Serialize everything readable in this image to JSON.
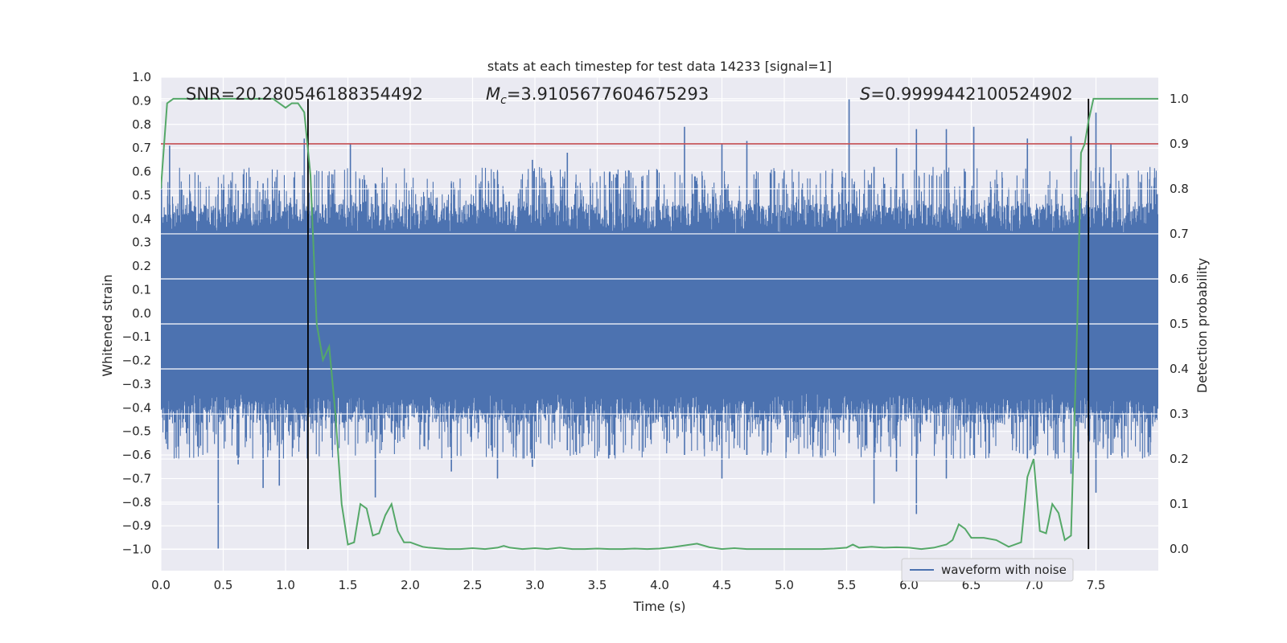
{
  "chart_data": {
    "type": "line",
    "title": "stats at each timestep for test data 14233 [signal=1]",
    "xlabel": "Time (s)",
    "ylabel_left": "Whitened strain",
    "ylabel_right": "Detection probability",
    "xlim": [
      0.0,
      8.0
    ],
    "ylim_left": [
      -1.09,
      1.0
    ],
    "ylim_right": [
      -0.048,
      1.048
    ],
    "x_ticks": [
      "0.0",
      "0.5",
      "1.0",
      "1.5",
      "2.0",
      "2.5",
      "3.0",
      "3.5",
      "4.0",
      "4.5",
      "5.0",
      "5.5",
      "6.0",
      "6.5",
      "7.0",
      "7.5"
    ],
    "x_tick_values": [
      0.0,
      0.5,
      1.0,
      1.5,
      2.0,
      2.5,
      3.0,
      3.5,
      4.0,
      4.5,
      5.0,
      5.5,
      6.0,
      6.5,
      7.0,
      7.5
    ],
    "y_left_ticks": [
      "1.0",
      "0.9",
      "0.8",
      "0.7",
      "0.6",
      "0.5",
      "0.4",
      "0.3",
      "0.2",
      "0.1",
      "0.0",
      "−0.1",
      "−0.2",
      "−0.3",
      "−0.4",
      "−0.5",
      "−0.6",
      "−0.7",
      "−0.8",
      "−0.9",
      "−1.0"
    ],
    "y_left_tick_values": [
      1.0,
      0.9,
      0.8,
      0.7,
      0.6,
      0.5,
      0.4,
      0.3,
      0.2,
      0.1,
      0.0,
      -0.1,
      -0.2,
      -0.3,
      -0.4,
      -0.5,
      -0.6,
      -0.7,
      -0.8,
      -0.9,
      -1.0
    ],
    "y_right_ticks": [
      "1.0",
      "0.9",
      "0.8",
      "0.7",
      "0.6",
      "0.5",
      "0.4",
      "0.3",
      "0.2",
      "0.1",
      "0.0"
    ],
    "y_right_tick_values": [
      1.0,
      0.9,
      0.8,
      0.7,
      0.6,
      0.5,
      0.4,
      0.3,
      0.2,
      0.1,
      0.0
    ],
    "annotations": {
      "snr": "SNR=20.280546188354492",
      "mc_symbol": "M",
      "mc_sub": "c",
      "mc_value": "=3.9105677604675293",
      "s_symbol": "S",
      "s_value": "=0.9999442100524902"
    },
    "threshold": {
      "value": 0.9,
      "axis": "right",
      "color": "#c44e52"
    },
    "vertical_lines": [
      1.18,
      7.44
    ],
    "legend": {
      "label": "waveform with noise",
      "location": "lower-right"
    },
    "waveform": {
      "name": "waveform with noise",
      "color": "#4c72b0",
      "core_band": [
        -0.34,
        0.34
      ],
      "spikes": [
        {
          "t": 0.07,
          "max": 0.71,
          "min": -0.45
        },
        {
          "t": 0.46,
          "max": 0.42,
          "min": -1.0
        },
        {
          "t": 0.62,
          "max": 0.52,
          "min": -0.64
        },
        {
          "t": 0.82,
          "max": 0.55,
          "min": -0.74
        },
        {
          "t": 0.95,
          "max": 0.52,
          "min": -0.73
        },
        {
          "t": 1.15,
          "max": 0.74,
          "min": -0.5
        },
        {
          "t": 1.52,
          "max": 0.72,
          "min": -0.45
        },
        {
          "t": 1.72,
          "max": 0.55,
          "min": -0.78
        },
        {
          "t": 2.33,
          "max": 0.55,
          "min": -0.67
        },
        {
          "t": 2.7,
          "max": 0.6,
          "min": -0.7
        },
        {
          "t": 2.98,
          "max": 0.65,
          "min": -0.65
        },
        {
          "t": 3.26,
          "max": 0.68,
          "min": -0.58
        },
        {
          "t": 3.6,
          "max": 0.6,
          "min": -0.6
        },
        {
          "t": 4.2,
          "max": 0.79,
          "min": -0.6
        },
        {
          "t": 4.5,
          "max": 0.72,
          "min": -0.7
        },
        {
          "t": 4.7,
          "max": 0.73,
          "min": -0.6
        },
        {
          "t": 5.52,
          "max": 0.91,
          "min": -0.55
        },
        {
          "t": 5.72,
          "max": 0.62,
          "min": -0.81
        },
        {
          "t": 5.9,
          "max": 0.7,
          "min": -0.67
        },
        {
          "t": 6.06,
          "max": 0.78,
          "min": -0.85
        },
        {
          "t": 6.3,
          "max": 0.78,
          "min": -0.7
        },
        {
          "t": 6.52,
          "max": 0.79,
          "min": -0.6
        },
        {
          "t": 6.95,
          "max": 0.74,
          "min": -0.62
        },
        {
          "t": 7.3,
          "max": 0.75,
          "min": -0.68
        },
        {
          "t": 7.5,
          "max": 0.85,
          "min": -0.76
        },
        {
          "t": 7.62,
          "max": 0.72,
          "min": -0.6
        }
      ]
    },
    "probability": {
      "name": "detection probability",
      "color": "#55a868",
      "x": [
        0.0,
        0.05,
        0.1,
        0.2,
        0.3,
        0.4,
        0.5,
        0.6,
        0.7,
        0.8,
        0.9,
        1.0,
        1.05,
        1.1,
        1.15,
        1.2,
        1.25,
        1.3,
        1.35,
        1.4,
        1.45,
        1.5,
        1.55,
        1.6,
        1.65,
        1.7,
        1.75,
        1.8,
        1.85,
        1.9,
        1.95,
        2.0,
        2.05,
        2.1,
        2.15,
        2.2,
        2.3,
        2.4,
        2.5,
        2.6,
        2.7,
        2.75,
        2.8,
        2.9,
        3.0,
        3.1,
        3.2,
        3.3,
        3.4,
        3.5,
        3.6,
        3.7,
        3.8,
        3.9,
        4.0,
        4.1,
        4.2,
        4.3,
        4.4,
        4.5,
        4.6,
        4.7,
        4.8,
        4.9,
        5.0,
        5.1,
        5.2,
        5.3,
        5.4,
        5.5,
        5.55,
        5.6,
        5.7,
        5.8,
        5.9,
        6.0,
        6.1,
        6.2,
        6.3,
        6.35,
        6.4,
        6.45,
        6.5,
        6.6,
        6.7,
        6.8,
        6.9,
        6.95,
        7.0,
        7.05,
        7.1,
        7.15,
        7.2,
        7.25,
        7.3,
        7.35,
        7.38,
        7.41,
        7.44,
        7.48,
        7.52,
        7.6,
        8.0
      ],
      "y": [
        0.8,
        0.99,
        1.0,
        1.0,
        1.0,
        1.0,
        1.0,
        1.0,
        1.0,
        1.0,
        1.0,
        0.98,
        0.99,
        0.99,
        0.97,
        0.83,
        0.5,
        0.42,
        0.45,
        0.3,
        0.1,
        0.01,
        0.015,
        0.1,
        0.09,
        0.03,
        0.035,
        0.075,
        0.1,
        0.04,
        0.015,
        0.015,
        0.01,
        0.005,
        0.003,
        0.002,
        0.0,
        0.0,
        0.002,
        0.0,
        0.003,
        0.007,
        0.003,
        0.0,
        0.002,
        0.0,
        0.003,
        0.0,
        0.0,
        0.001,
        0.0,
        0.0,
        0.001,
        0.0,
        0.001,
        0.004,
        0.008,
        0.012,
        0.004,
        0.0,
        0.002,
        0.0,
        0.0,
        0.0,
        0.0,
        0.0,
        0.0,
        0.0,
        0.001,
        0.003,
        0.01,
        0.003,
        0.005,
        0.003,
        0.004,
        0.003,
        0.0,
        0.003,
        0.01,
        0.02,
        0.055,
        0.045,
        0.025,
        0.025,
        0.02,
        0.005,
        0.015,
        0.16,
        0.2,
        0.04,
        0.035,
        0.1,
        0.08,
        0.02,
        0.03,
        0.5,
        0.88,
        0.9,
        0.95,
        1.0,
        1.0,
        1.0,
        1.0
      ]
    }
  }
}
